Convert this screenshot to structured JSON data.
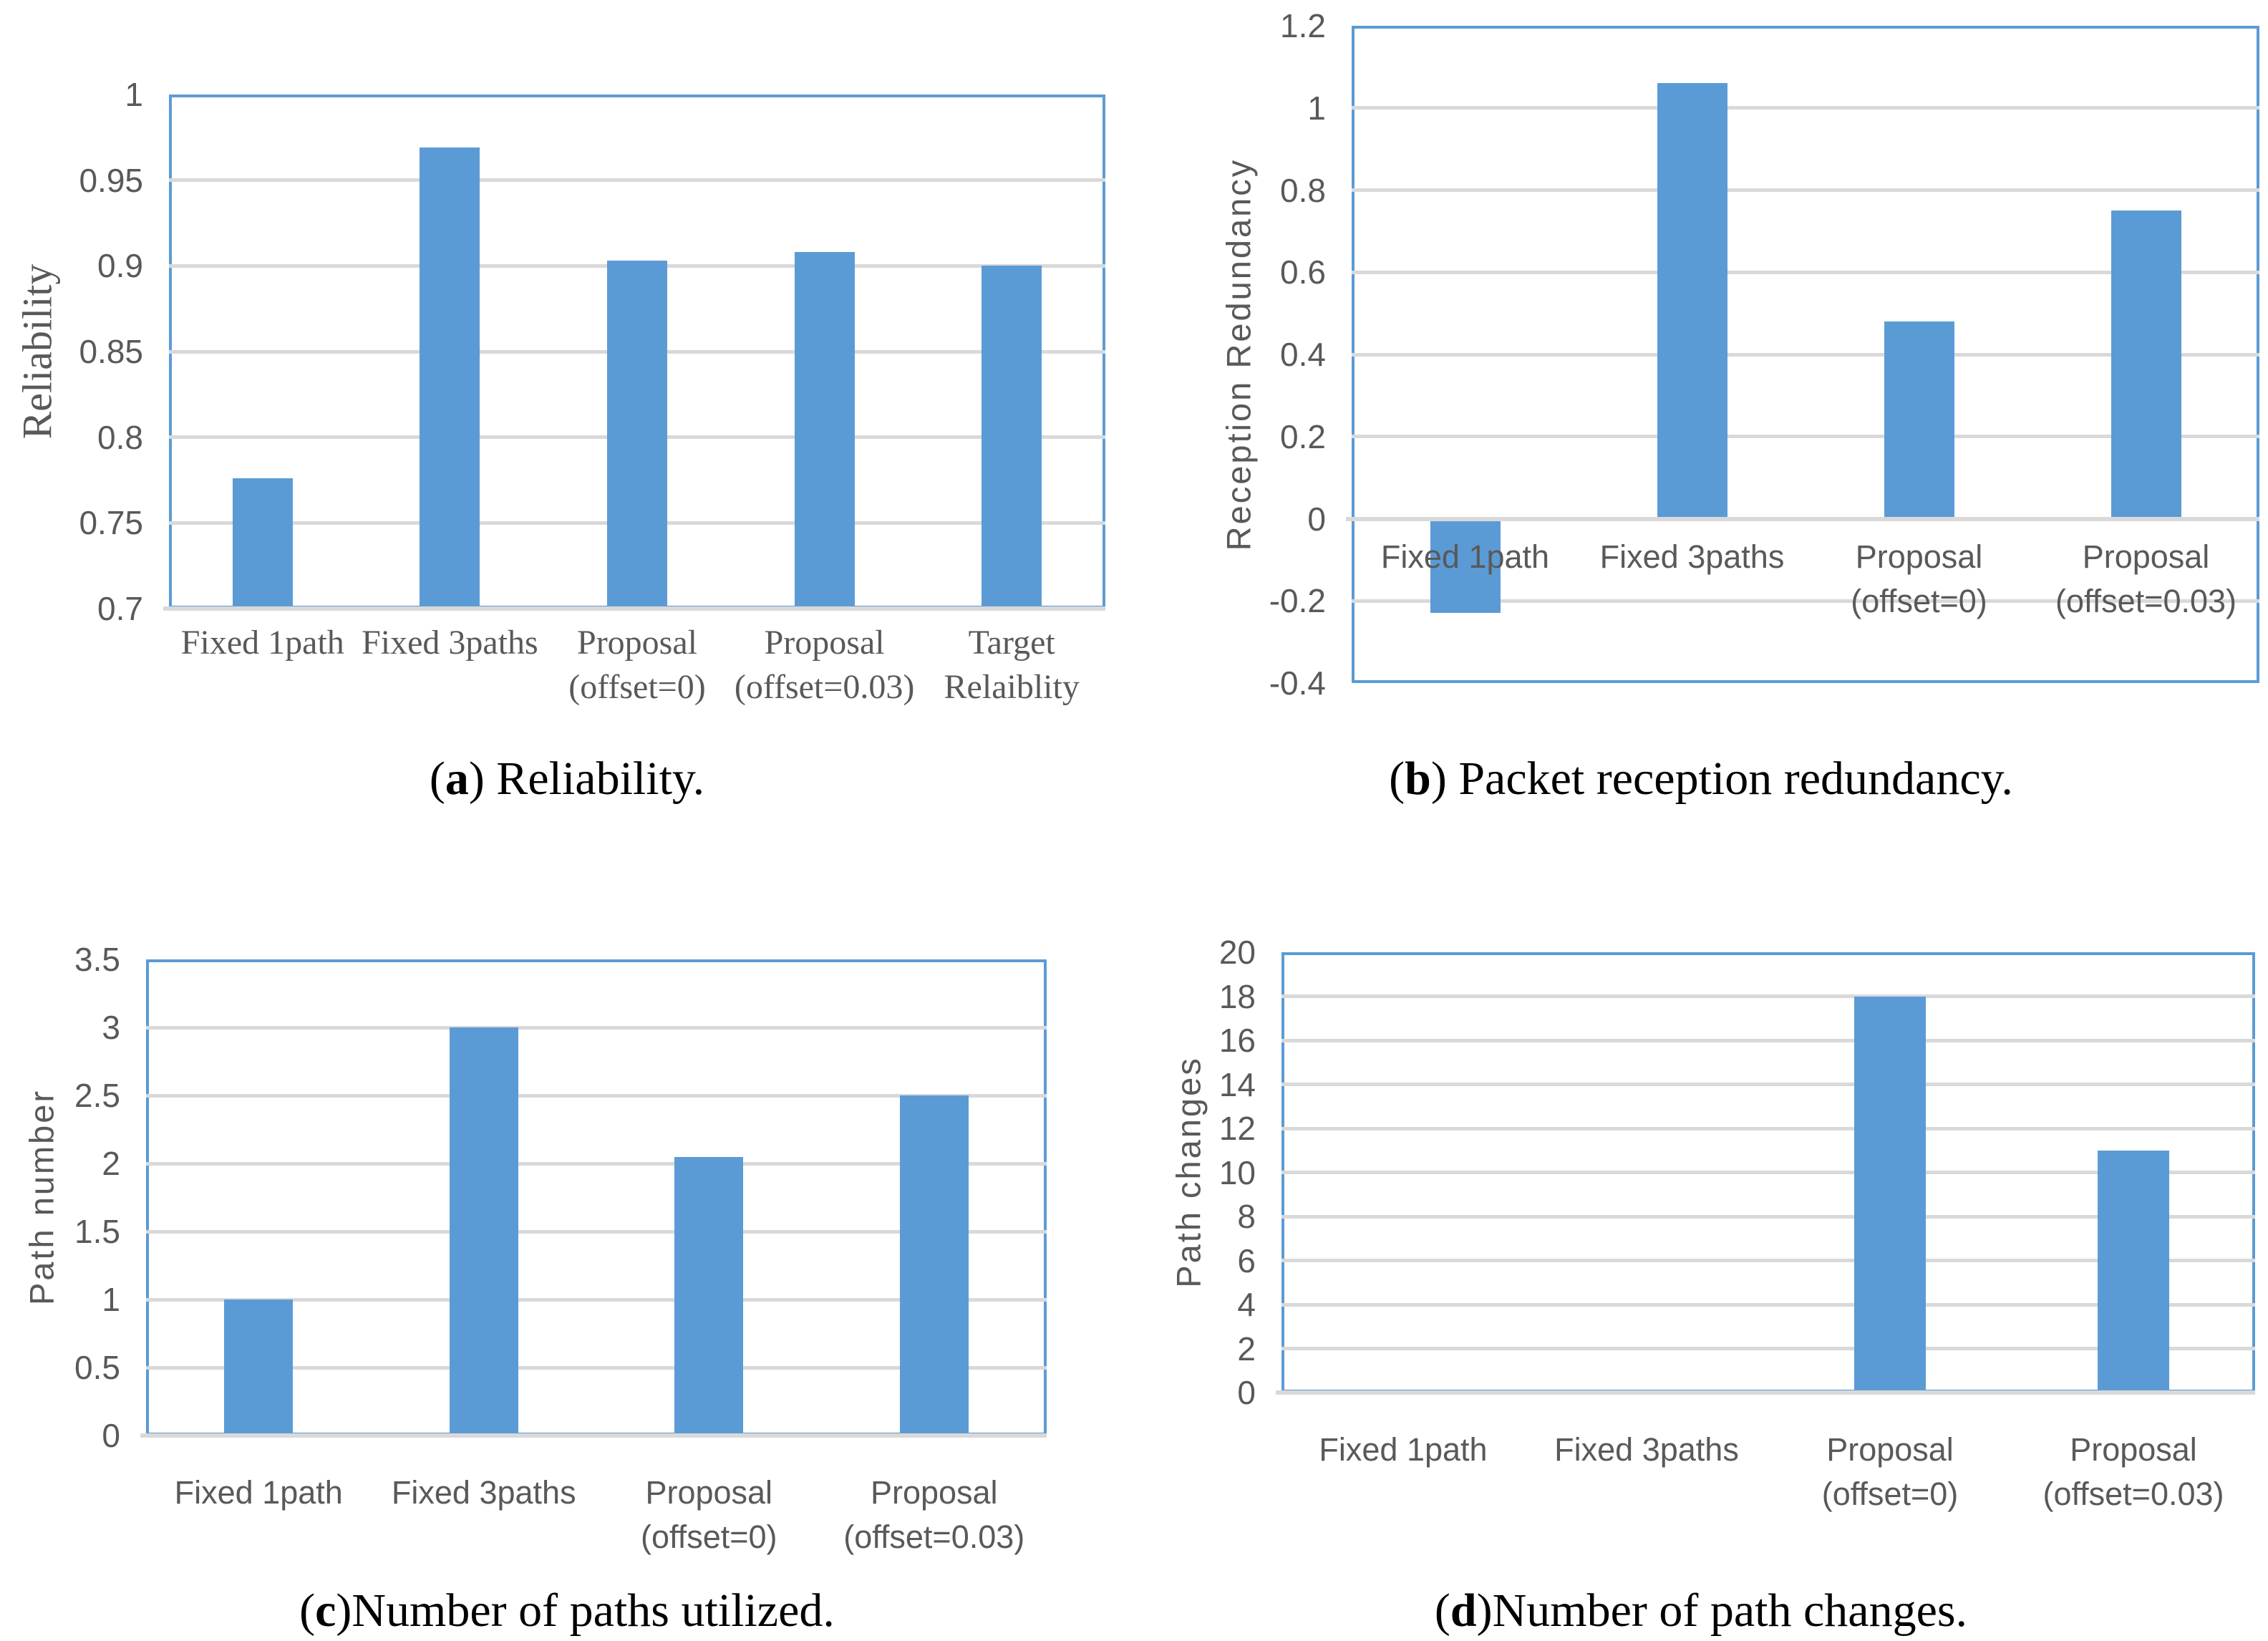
{
  "figure": {
    "colors": {
      "bar_fill": "#5b9bd5",
      "plot_border": "#5b9bd5",
      "gridline": "#d9d9d9",
      "axis_line": "#d9d9d9",
      "tick_text": "#595959",
      "axis_title_text": "#595959",
      "caption_text": "#000000"
    }
  },
  "chart_data": [
    {
      "id": "a",
      "type": "bar",
      "title": "(a) Reliability.",
      "caption_open": "(",
      "caption_letter": "a",
      "caption_close": ")",
      "caption_text": " Reliability.",
      "ylabel": "Reliability",
      "xlabel": "",
      "categories": [
        "Fixed 1path",
        "Fixed 3paths",
        "Proposal\n(offset=0)",
        "Proposal\n(offset=0.03)",
        "Target\nRelaiblity"
      ],
      "values": [
        0.776,
        0.969,
        0.903,
        0.908,
        0.9
      ],
      "ylim": [
        0.7,
        1.0
      ],
      "ystep": 0.05,
      "yticks": [
        "0.7",
        "0.75",
        "0.8",
        "0.85",
        "0.9",
        "0.95",
        "1"
      ],
      "axis_value": 0.7,
      "grid": true,
      "legend": null
    },
    {
      "id": "b",
      "type": "bar",
      "title": "(b) Packet reception redundancy.",
      "caption_open": "(",
      "caption_letter": "b",
      "caption_close": ")",
      "caption_text": " Packet reception redundancy.",
      "ylabel": "Reception Redundancy",
      "xlabel": "",
      "categories": [
        "Fixed 1path",
        "Fixed 3paths",
        "Proposal\n(offset=0)",
        "Proposal\n(offset=0.03)"
      ],
      "values": [
        -0.23,
        1.06,
        0.48,
        0.75
      ],
      "ylim": [
        -0.4,
        1.2
      ],
      "ystep": 0.2,
      "yticks": [
        "-0.4",
        "-0.2",
        "0",
        "0.2",
        "0.4",
        "0.6",
        "0.8",
        "1",
        "1.2"
      ],
      "axis_value": 0,
      "grid": true,
      "legend": null
    },
    {
      "id": "c",
      "type": "bar",
      "title": "(c)Number of paths utilized.",
      "caption_open": "(",
      "caption_letter": "c",
      "caption_close": ")",
      "caption_text": "Number of paths utilized.",
      "ylabel": "Path number",
      "xlabel": "",
      "categories": [
        "Fixed 1path",
        "Fixed 3paths",
        "Proposal\n(offset=0)",
        "Proposal\n(offset=0.03)"
      ],
      "values": [
        1,
        3,
        2.05,
        2.5
      ],
      "ylim": [
        0,
        3.5
      ],
      "ystep": 0.5,
      "yticks": [
        "0",
        "0.5",
        "1",
        "1.5",
        "2",
        "2.5",
        "3",
        "3.5"
      ],
      "axis_value": 0,
      "grid": true,
      "legend": null
    },
    {
      "id": "d",
      "type": "bar",
      "title": "(d)Number of path changes.",
      "caption_open": "(",
      "caption_letter": "d",
      "caption_close": ")",
      "caption_text": "Number of path changes.",
      "ylabel": "Path changes",
      "xlabel": "",
      "categories": [
        "Fixed 1path",
        "Fixed 3paths",
        "Proposal\n(offset=0)",
        "Proposal\n(offset=0.03)"
      ],
      "values": [
        0,
        0,
        18,
        11
      ],
      "ylim": [
        0,
        20
      ],
      "ystep": 2,
      "yticks": [
        "0",
        "2",
        "4",
        "6",
        "8",
        "10",
        "12",
        "14",
        "16",
        "18",
        "20"
      ],
      "axis_value": 0,
      "grid": true,
      "legend": null
    }
  ]
}
